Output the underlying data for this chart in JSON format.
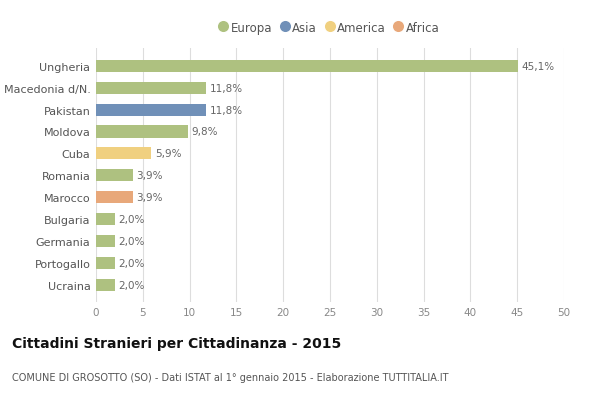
{
  "countries": [
    "Ungheria",
    "Macedonia d/N.",
    "Pakistan",
    "Moldova",
    "Cuba",
    "Romania",
    "Marocco",
    "Bulgaria",
    "Germania",
    "Portogallo",
    "Ucraina"
  ],
  "values": [
    45.1,
    11.8,
    11.8,
    9.8,
    5.9,
    3.9,
    3.9,
    2.0,
    2.0,
    2.0,
    2.0
  ],
  "labels": [
    "45,1%",
    "11,8%",
    "11,8%",
    "9,8%",
    "5,9%",
    "3,9%",
    "3,9%",
    "2,0%",
    "2,0%",
    "2,0%",
    "2,0%"
  ],
  "colors": [
    "#aec180",
    "#aec180",
    "#7090b8",
    "#aec180",
    "#f0d080",
    "#aec180",
    "#e8a87a",
    "#aec180",
    "#aec180",
    "#aec180",
    "#aec180"
  ],
  "legend": [
    {
      "label": "Europa",
      "color": "#aec180"
    },
    {
      "label": "Asia",
      "color": "#7090b8"
    },
    {
      "label": "America",
      "color": "#f0d080"
    },
    {
      "label": "Africa",
      "color": "#e8a87a"
    }
  ],
  "title": "Cittadini Stranieri per Cittadinanza - 2015",
  "subtitle": "COMUNE DI GROSOTTO (SO) - Dati ISTAT al 1° gennaio 2015 - Elaborazione TUTTITALIA.IT",
  "xlim": [
    0,
    50
  ],
  "xticks": [
    0,
    5,
    10,
    15,
    20,
    25,
    30,
    35,
    40,
    45,
    50
  ],
  "background_color": "#ffffff",
  "grid_color": "#dddddd",
  "bar_height": 0.55
}
